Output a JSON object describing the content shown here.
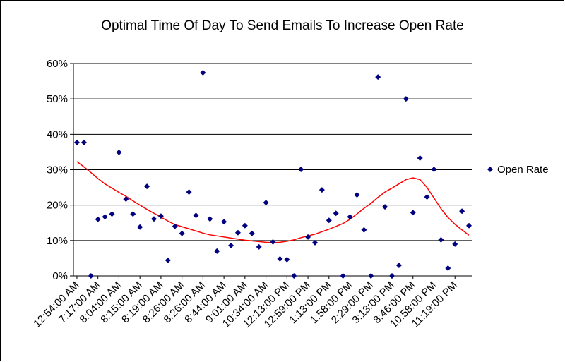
{
  "chart_data": {
    "type": "scatter",
    "title": "Optimal Time Of Day To Send Emails To Increase Open Rate",
    "categories": [
      "12:54:00 AM",
      null,
      null,
      "7:17:00 AM",
      null,
      null,
      "8:04:00 AM",
      null,
      null,
      "8:15:00 AM",
      null,
      null,
      "8:19:00 AM",
      null,
      null,
      "8:26:00 AM",
      null,
      null,
      "8:26:00 AM",
      null,
      null,
      "8:44:00 AM",
      null,
      null,
      "9:01:00 AM",
      null,
      null,
      "10:34:00 AM",
      null,
      null,
      "12:13:00 PM",
      null,
      null,
      "12:59:00 PM",
      null,
      null,
      "1:13:00 PM",
      null,
      null,
      "1:58:00 PM",
      null,
      null,
      "2:29:00 PM",
      null,
      null,
      "3:13:00 PM",
      null,
      null,
      "8:46:00 PM",
      null,
      null,
      "10:58:00 PM",
      null,
      null,
      "11:19:00 PM",
      null,
      null
    ],
    "series": [
      {
        "name": "Open Rate",
        "color": "#000080",
        "values": [
          37.7,
          37.7,
          0,
          16,
          16.7,
          17.5,
          34.9,
          21.7,
          17.5,
          13.8,
          25.3,
          16.1,
          16.9,
          4.4,
          14,
          12,
          23.7,
          17.1,
          57.4,
          16.1,
          7,
          15.3,
          8.6,
          12.2,
          14.2,
          12,
          8.2,
          20.7,
          9.6,
          4.8,
          4.6,
          0,
          30.1,
          11,
          9.4,
          24.3,
          15.7,
          17.7,
          0,
          16.7,
          22.9,
          13,
          0,
          56.2,
          19.5,
          0,
          3,
          50,
          17.9,
          33.3,
          22.3,
          30.1,
          10.2,
          2.2,
          9,
          18.3,
          14.2
        ]
      }
    ],
    "trendline": {
      "color": "#ff0000",
      "values": [
        32.3,
        30.8,
        29.2,
        27.5,
        26,
        24.8,
        23.6,
        22.5,
        21.2,
        20,
        18.8,
        17.7,
        16.6,
        15.5,
        14.5,
        13.9,
        13.3,
        12.7,
        12.1,
        11.6,
        11.3,
        11,
        10.7,
        10.4,
        10.1,
        9.9,
        9.7,
        9.5,
        9.4,
        9.5,
        9.8,
        10.2,
        10.8,
        11.3,
        11.8,
        12.5,
        13.2,
        14,
        14.8,
        16,
        17.5,
        19.1,
        20.5,
        22.2,
        23.7,
        24.8,
        26,
        27.2,
        27.7,
        27.2,
        25,
        22,
        19,
        16.5,
        14.6,
        13,
        11.5
      ]
    },
    "ylim": [
      0,
      60
    ],
    "yticks": [
      {
        "value": 0,
        "label": "0%"
      },
      {
        "value": 10,
        "label": "10%"
      },
      {
        "value": 20,
        "label": "20%"
      },
      {
        "value": 30,
        "label": "30%"
      },
      {
        "value": 40,
        "label": "40%"
      },
      {
        "value": 50,
        "label": "50%"
      },
      {
        "value": 60,
        "label": "60%"
      }
    ],
    "grid": true,
    "legend": "right"
  }
}
